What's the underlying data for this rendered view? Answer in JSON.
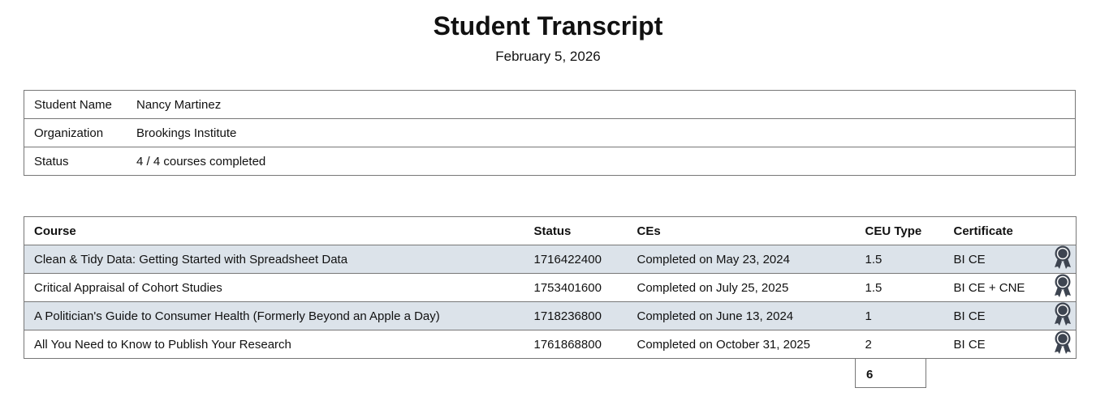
{
  "title": "Student Transcript",
  "date": "February 5, 2026",
  "info": [
    {
      "label": "Student Name",
      "value": "Nancy Martinez"
    },
    {
      "label": "Organization",
      "value": "Brookings Institute"
    },
    {
      "label": "Status",
      "value": "4 / 4 courses completed"
    }
  ],
  "columns": [
    "Course",
    "Status",
    "CEs",
    "CEU Type",
    "Certificate"
  ],
  "rows": [
    {
      "course": "Clean & Tidy Data: Getting Started with Spreadsheet Data",
      "status": "1716422400",
      "ces": "Completed on May 23, 2024",
      "ceu": "1.5",
      "certificate": "BI CE",
      "icon": "award-ribbon-icon"
    },
    {
      "course": "Critical Appraisal of Cohort Studies",
      "status": "1753401600",
      "ces": "Completed on July 25, 2025",
      "ceu": "1.5",
      "certificate": "BI CE + CNE",
      "icon": "award-ribbon-icon"
    },
    {
      "course": "A Politician's Guide to Consumer Health (Formerly Beyond an Apple a Day)",
      "status": "1718236800",
      "ces": "Completed on June 13, 2024",
      "ceu": "1",
      "certificate": "BI CE",
      "icon": "award-ribbon-icon"
    },
    {
      "course": "All You Need to Know to Publish Your Research",
      "status": "1761868800",
      "ces": "Completed on October 31, 2025",
      "ceu": "2",
      "certificate": "BI CE",
      "icon": "award-ribbon-icon"
    }
  ],
  "total": "6",
  "colors": {
    "stripe": "#dce3ea",
    "icon": "#3d4450"
  }
}
